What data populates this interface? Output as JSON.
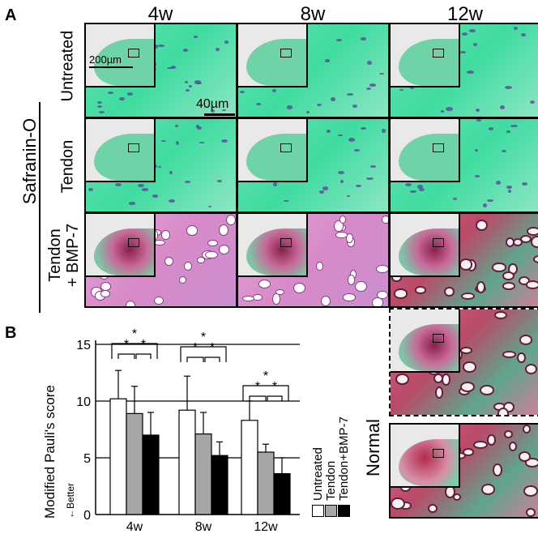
{
  "panel_a": {
    "letter": "A",
    "columns": [
      "4w",
      "8w",
      "12w"
    ],
    "stain_label": "Safranin-O",
    "rows": [
      "Untreated",
      "Tendon",
      "Tendon + BMP-7"
    ],
    "scale_inset": "200µm",
    "scale_main": "40µm",
    "normal_label": "Normal",
    "colors": {
      "fast_green": "#3fdca0",
      "safranin_red": "#c8385a",
      "pink": "#d88ac8",
      "inset_bg": "#e9e9e9"
    }
  },
  "panel_b": {
    "letter": "B",
    "arrow_label": "←Better",
    "legend": [
      "Untreated",
      "Tendon",
      "Tendon+BMP-7"
    ]
  },
  "chart_data": {
    "type": "bar",
    "ylabel": "Modified Pauli's score",
    "ylim": [
      0,
      15
    ],
    "yticks": [
      0,
      5,
      10,
      15
    ],
    "categories": [
      "4w",
      "8w",
      "12w"
    ],
    "series": [
      {
        "name": "Untreated",
        "color": "#ffffff",
        "values": [
          10.2,
          9.2,
          8.3
        ],
        "errors": [
          2.5,
          3.0,
          1.7
        ]
      },
      {
        "name": "Tendon",
        "color": "#a6a6a6",
        "values": [
          8.9,
          7.1,
          5.5
        ],
        "errors": [
          2.4,
          1.9,
          0.7
        ]
      },
      {
        "name": "Tendon+BMP-7",
        "color": "#000000",
        "values": [
          7.0,
          5.2,
          3.6
        ],
        "errors": [
          2.0,
          1.2,
          1.4
        ]
      }
    ],
    "significance_marker": "*",
    "grid": "horizontal at 5, 10, 15"
  }
}
